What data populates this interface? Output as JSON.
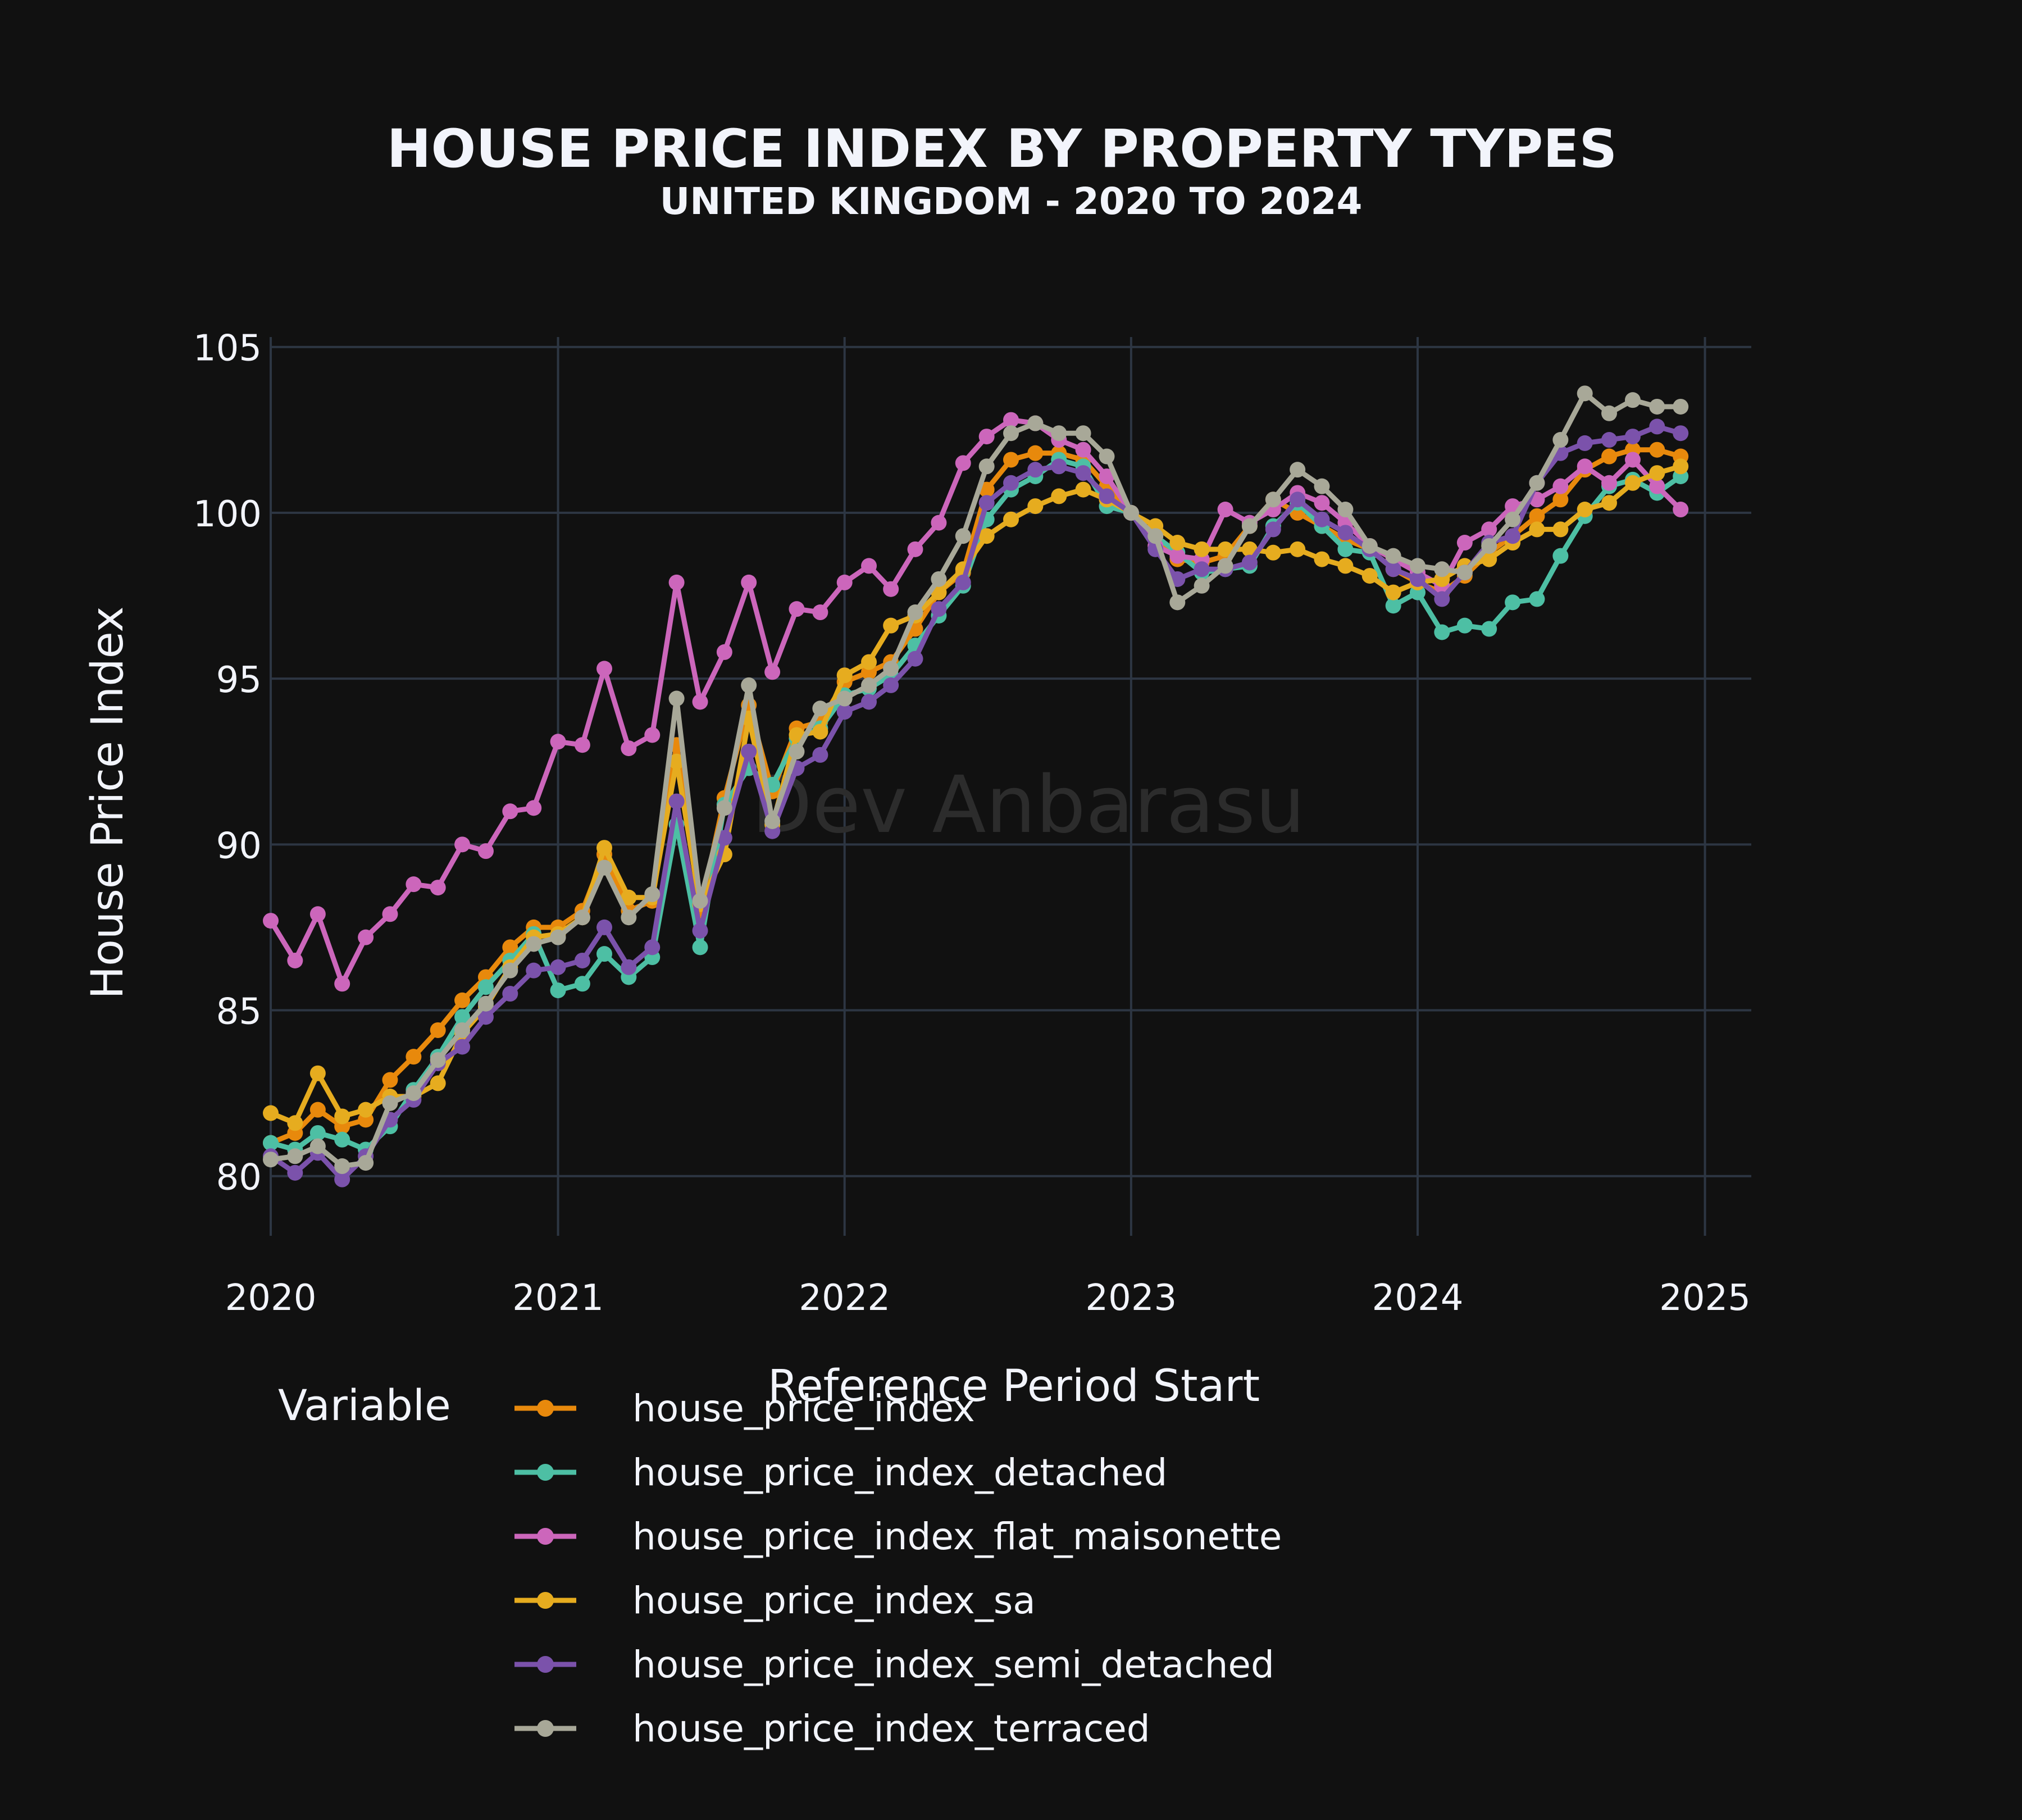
{
  "chart_data": {
    "type": "line",
    "title": "HOUSE PRICE INDEX BY PROPERTY TYPES",
    "subtitle": "UNITED KINGDOM - 2020 TO 2024",
    "xlabel": "Reference Period Start",
    "ylabel": "House Price Index",
    "watermark": "Dev Anbarasu",
    "xlim": [
      "2020-01-01",
      "2025-03-01"
    ],
    "ylim": [
      78.2,
      105.3
    ],
    "xticks": [
      "2020",
      "2021",
      "2022",
      "2023",
      "2024",
      "2025"
    ],
    "yticks": [
      80,
      85,
      90,
      95,
      100,
      105
    ],
    "grid": true,
    "legend_title": "Variable",
    "legend_position": "bottom",
    "x": [
      "2020-01-01",
      "2020-02-01",
      "2020-03-01",
      "2020-04-01",
      "2020-05-01",
      "2020-06-01",
      "2020-07-01",
      "2020-08-01",
      "2020-09-01",
      "2020-10-01",
      "2020-11-01",
      "2020-12-01",
      "2021-01-01",
      "2021-02-01",
      "2021-03-01",
      "2021-04-01",
      "2021-05-01",
      "2021-06-01",
      "2021-07-01",
      "2021-08-01",
      "2021-09-01",
      "2021-10-01",
      "2021-11-01",
      "2021-12-01",
      "2022-01-01",
      "2022-02-01",
      "2022-03-01",
      "2022-04-01",
      "2022-05-01",
      "2022-06-01",
      "2022-07-01",
      "2022-08-01",
      "2022-09-01",
      "2022-10-01",
      "2022-11-01",
      "2022-12-01",
      "2023-01-01",
      "2023-02-01",
      "2023-03-01",
      "2023-04-01",
      "2023-05-01",
      "2023-06-01",
      "2023-07-01",
      "2023-08-01",
      "2023-09-01",
      "2023-10-01",
      "2023-11-01",
      "2023-12-01",
      "2024-01-01",
      "2024-02-01",
      "2024-03-01",
      "2024-04-01",
      "2024-05-01",
      "2024-06-01",
      "2024-07-01",
      "2024-08-01",
      "2024-09-01",
      "2024-10-01",
      "2024-11-01",
      "2024-12-01"
    ],
    "series": [
      {
        "name": "house_price_index",
        "color": "#E8890C",
        "values": [
          81.0,
          81.3,
          82.0,
          81.5,
          81.7,
          82.9,
          83.6,
          84.4,
          85.3,
          86.0,
          86.9,
          87.5,
          87.5,
          88.0,
          89.7,
          88.0,
          88.3,
          93.0,
          88.0,
          91.4,
          94.2,
          91.6,
          93.5,
          93.7,
          94.9,
          95.2,
          95.5,
          96.5,
          97.6,
          98.2,
          100.7,
          101.6,
          101.8,
          101.8,
          101.6,
          100.8,
          100.0,
          99.3,
          98.6,
          98.5,
          98.7,
          99.6,
          100.4,
          100.0,
          99.6,
          99.2,
          98.9,
          98.3,
          97.9,
          97.6,
          98.1,
          98.8,
          99.3,
          99.9,
          100.4,
          101.3,
          101.7,
          101.9,
          101.9,
          101.7
        ]
      },
      {
        "name": "house_price_index_detached",
        "color": "#4DBFA4",
        "values": [
          81.0,
          80.8,
          81.3,
          81.1,
          80.8,
          81.5,
          82.6,
          83.6,
          84.8,
          85.7,
          86.5,
          87.3,
          85.6,
          85.8,
          86.7,
          86.0,
          86.6,
          90.6,
          86.9,
          91.2,
          92.3,
          91.8,
          93.2,
          93.5,
          94.5,
          94.7,
          95.1,
          96.0,
          96.9,
          97.8,
          99.8,
          100.7,
          101.1,
          101.6,
          101.4,
          100.2,
          100.0,
          99.3,
          98.8,
          98.2,
          98.3,
          98.4,
          99.6,
          100.3,
          99.6,
          98.9,
          98.8,
          97.2,
          97.6,
          96.4,
          96.6,
          96.5,
          97.3,
          97.4,
          98.7,
          99.9,
          100.8,
          101.0,
          100.6,
          101.1
        ]
      },
      {
        "name": "house_price_index_flat_maisonette",
        "color": "#CC66BB",
        "values": [
          87.7,
          86.5,
          87.9,
          85.8,
          87.2,
          87.9,
          88.8,
          88.7,
          90.0,
          89.8,
          91.0,
          91.1,
          93.1,
          93.0,
          95.3,
          92.9,
          93.3,
          97.9,
          94.3,
          95.8,
          97.9,
          95.2,
          97.1,
          97.0,
          97.9,
          98.4,
          97.7,
          98.9,
          99.7,
          101.5,
          102.3,
          102.8,
          102.7,
          102.2,
          101.9,
          101.1,
          100.0,
          99.0,
          98.7,
          98.6,
          100.1,
          99.7,
          100.1,
          100.6,
          100.3,
          99.7,
          99.0,
          98.6,
          98.2,
          97.8,
          99.1,
          99.5,
          100.2,
          100.4,
          100.8,
          101.4,
          100.9,
          101.6,
          100.8,
          100.1
        ]
      },
      {
        "name": "house_price_index_sa",
        "color": "#E6AC1F",
        "values": [
          81.9,
          81.6,
          83.1,
          81.8,
          82.0,
          82.4,
          82.4,
          82.8,
          84.3,
          85.1,
          86.3,
          87.2,
          87.3,
          87.8,
          89.9,
          88.4,
          88.4,
          92.5,
          88.2,
          89.7,
          93.8,
          90.6,
          93.3,
          93.4,
          95.1,
          95.5,
          96.6,
          96.9,
          97.6,
          98.3,
          99.3,
          99.8,
          100.2,
          100.5,
          100.7,
          100.4,
          100.0,
          99.6,
          99.1,
          98.9,
          98.9,
          98.9,
          98.8,
          98.9,
          98.6,
          98.4,
          98.1,
          97.6,
          97.9,
          98.0,
          98.4,
          98.6,
          99.1,
          99.5,
          99.5,
          100.1,
          100.3,
          100.9,
          101.2,
          101.4
        ]
      },
      {
        "name": "house_price_index_semi_detached",
        "color": "#7B52AB",
        "values": [
          80.6,
          80.1,
          80.7,
          79.9,
          80.6,
          81.7,
          82.3,
          83.4,
          83.9,
          84.8,
          85.5,
          86.2,
          86.3,
          86.5,
          87.5,
          86.3,
          86.9,
          91.3,
          87.4,
          90.2,
          92.8,
          90.4,
          92.3,
          92.7,
          94.0,
          94.3,
          94.8,
          95.6,
          97.1,
          97.9,
          100.3,
          100.9,
          101.3,
          101.4,
          101.2,
          100.5,
          100.0,
          98.9,
          98.0,
          98.3,
          98.3,
          98.5,
          99.5,
          100.4,
          99.8,
          99.4,
          98.9,
          98.3,
          98.0,
          97.4,
          98.2,
          99.1,
          99.3,
          100.9,
          101.8,
          102.1,
          102.2,
          102.3,
          102.6,
          102.4
        ]
      },
      {
        "name": "house_price_index_terraced",
        "color": "#A8A898",
        "values": [
          80.5,
          80.6,
          80.9,
          80.3,
          80.4,
          82.2,
          82.5,
          83.5,
          84.4,
          85.2,
          86.2,
          87.0,
          87.2,
          87.8,
          89.3,
          87.8,
          88.5,
          94.4,
          88.3,
          91.1,
          94.8,
          90.7,
          92.8,
          94.1,
          94.4,
          94.8,
          95.3,
          97.0,
          98.0,
          99.3,
          101.4,
          102.4,
          102.7,
          102.4,
          102.4,
          101.7,
          100.0,
          99.3,
          97.3,
          97.8,
          98.4,
          99.6,
          100.4,
          101.3,
          100.8,
          100.1,
          99.0,
          98.7,
          98.4,
          98.3,
          98.2,
          99.0,
          99.8,
          100.9,
          102.2,
          103.6,
          103.0,
          103.4,
          103.2,
          103.2
        ]
      }
    ]
  }
}
